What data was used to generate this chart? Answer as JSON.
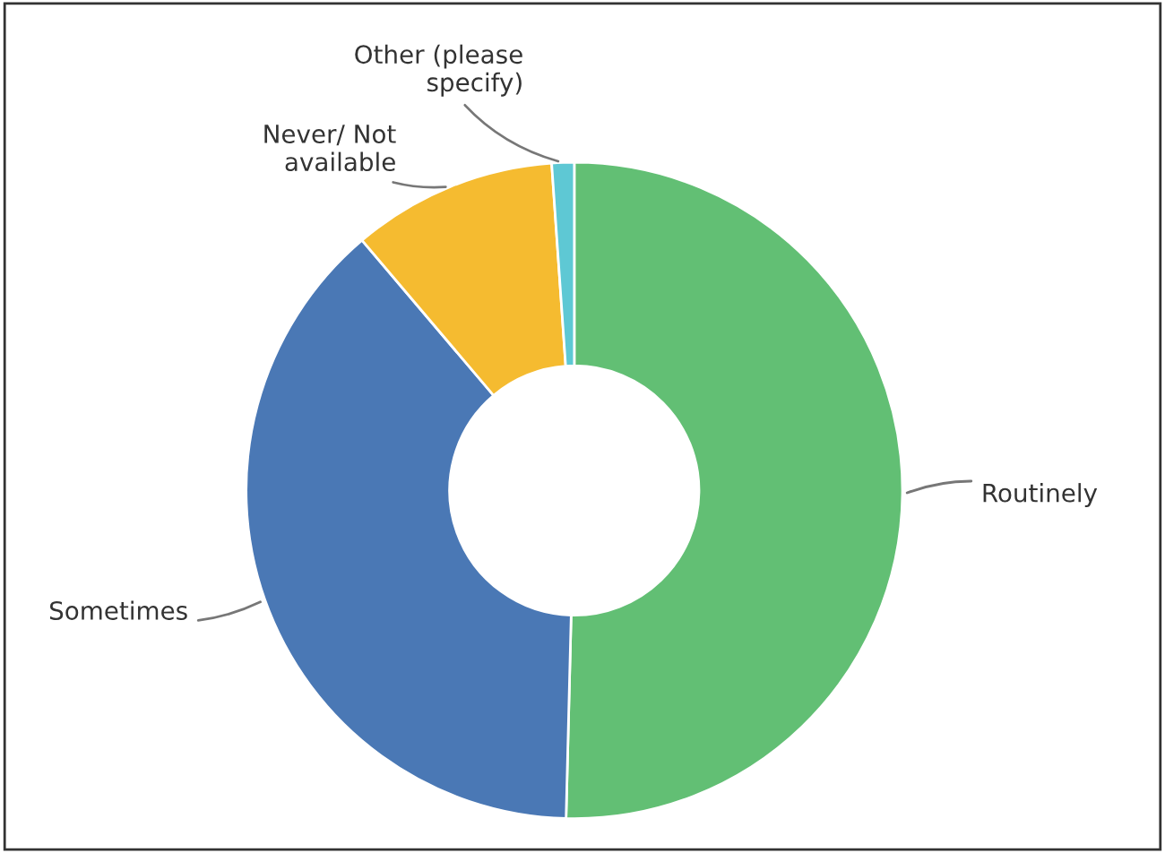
{
  "chart_data": {
    "type": "donut",
    "categories": [
      "Routinely",
      "Sometimes",
      "Never/ Not available",
      "Other (please specify)"
    ],
    "values": [
      50.4,
      38.4,
      10.1,
      1.1
    ],
    "colors": [
      "#62bf74",
      "#4a78b5",
      "#f5bb30",
      "#5ec8d4"
    ]
  }
}
